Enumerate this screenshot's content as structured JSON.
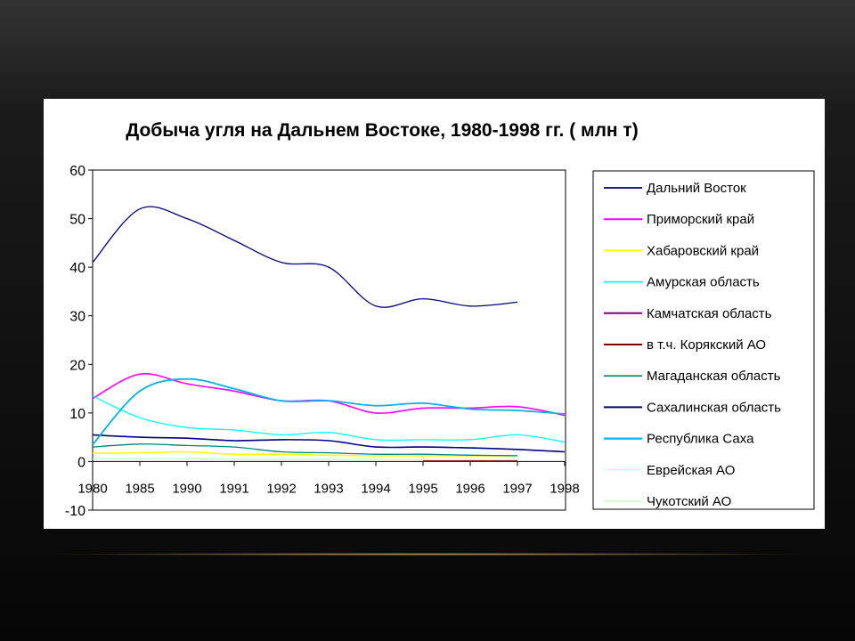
{
  "slide": {
    "panel_bg": "#ffffff",
    "glow_color": "#c79a4a"
  },
  "chart_data": {
    "type": "line",
    "title": "Добыча угля на Дальнем Востоке, 1980-1998 гг. ( млн т)",
    "xlabel": "",
    "ylabel": "",
    "categories": [
      "1980",
      "1985",
      "1990",
      "1991",
      "1992",
      "1993",
      "1994",
      "1995",
      "1996",
      "1997",
      "1998"
    ],
    "ylim": [
      -10,
      60
    ],
    "yticks": [
      "60",
      "50",
      "40",
      "30",
      "20",
      "10",
      "0",
      "-10"
    ],
    "grid": false,
    "legend_position": "right",
    "series": [
      {
        "name": "Дальний Восток",
        "color": "#000080",
        "width": 1.3,
        "values": [
          41,
          52,
          50,
          45.5,
          41,
          40,
          32,
          33.5,
          32,
          32.8,
          null
        ]
      },
      {
        "name": "Приморский край",
        "color": "#ff00ff",
        "width": 1.6,
        "values": [
          13,
          18,
          16,
          14.5,
          12.5,
          12.5,
          10,
          11,
          11,
          11.3,
          9.5
        ]
      },
      {
        "name": "Хабаровский край",
        "color": "#ffff00",
        "width": 1.6,
        "values": [
          1.7,
          1.8,
          2,
          1.5,
          1.5,
          1.3,
          1.2,
          1.2,
          1.2,
          1.2,
          null
        ]
      },
      {
        "name": "Амурская область",
        "color": "#00ffff",
        "width": 1.3,
        "values": [
          13.5,
          9,
          7,
          6.5,
          5.5,
          6,
          4.5,
          4.5,
          4.5,
          5.5,
          4
        ]
      },
      {
        "name": "Камчатская область",
        "color": "#800080",
        "width": 1.6,
        "values": [
          null,
          null,
          null,
          null,
          null,
          null,
          null,
          null,
          null,
          null,
          null
        ]
      },
      {
        "name": "в т.ч. Корякский АО",
        "color": "#800000",
        "width": 1.6,
        "values": [
          null,
          null,
          null,
          null,
          null,
          null,
          null,
          0.1,
          0.1,
          0.1,
          null
        ]
      },
      {
        "name": "Магаданская область",
        "color": "#008080",
        "width": 1.3,
        "values": [
          3,
          3.6,
          3.3,
          3,
          2,
          1.8,
          1.5,
          1.5,
          1.3,
          1.2,
          null
        ]
      },
      {
        "name": "Сахалинская область",
        "color": "#000080",
        "width": 1.6,
        "values": [
          5.5,
          5,
          4.8,
          4.3,
          4.5,
          4.3,
          3,
          3,
          2.8,
          2.5,
          2
        ]
      },
      {
        "name": "Республика Саха",
        "color": "#00b4f0",
        "width": 1.8,
        "values": [
          3.5,
          14.5,
          17,
          15,
          12.5,
          12.5,
          11.5,
          12,
          10.8,
          10.5,
          9.8
        ]
      },
      {
        "name": "Еврейская АО",
        "color": "#ccffff",
        "width": 1.3,
        "values": [
          null,
          null,
          null,
          null,
          null,
          null,
          null,
          null,
          null,
          null,
          null
        ]
      },
      {
        "name": "Чукотский АО",
        "color": "#ccffcc",
        "width": 1.3,
        "values": [
          0.6,
          0.6,
          0.6,
          0.5,
          0.5,
          0.5,
          0.5,
          0.4,
          0.4,
          0.4,
          null
        ]
      }
    ]
  }
}
